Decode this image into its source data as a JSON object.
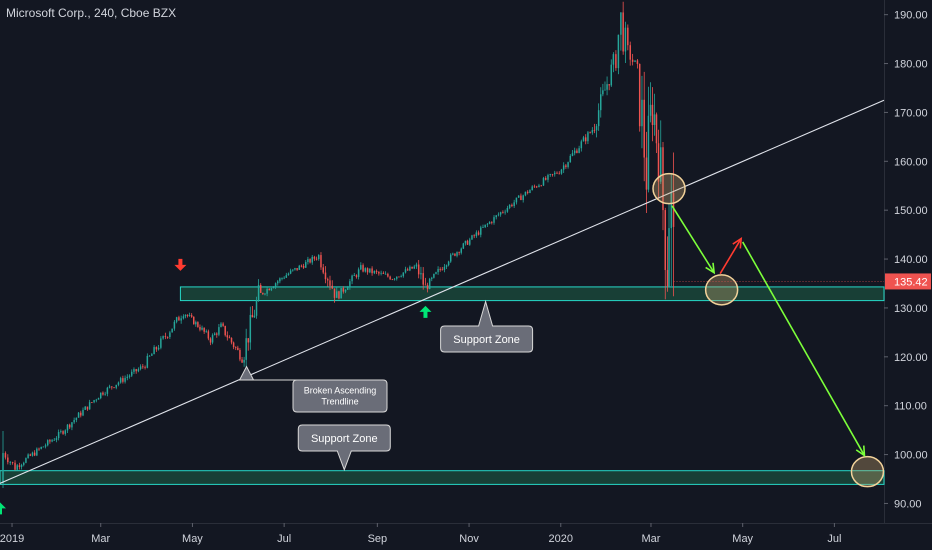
{
  "chart_data": {
    "type": "candlestick",
    "title": "Microsoft Corp., 240, Cboe BZX",
    "ylim": [
      86,
      193
    ],
    "y_ticks": [
      90,
      100,
      110,
      120,
      130,
      140,
      150,
      160,
      170,
      180,
      190
    ],
    "y_tick_labels": [
      "90.00",
      "100.00",
      "110.00",
      "120.00",
      "130.00",
      "140.00",
      "150.00",
      "160.00",
      "170.00",
      "180.00",
      "190.00"
    ],
    "x_range": [
      "2018-12-24",
      "2020-08-03"
    ],
    "x_ticks": [
      "2019-01-01",
      "2019-03-01",
      "2019-05-01",
      "2019-07-01",
      "2019-09-01",
      "2019-11-01",
      "2020-01-01",
      "2020-03-01",
      "2020-05-01",
      "2020-07-01"
    ],
    "x_tick_labels": [
      "2019",
      "Mar",
      "May",
      "Jul",
      "Sep",
      "Nov",
      "2020",
      "Mar",
      "May",
      "Jul"
    ],
    "price_path": [
      {
        "date": "2018-12-24",
        "price": 94.1
      },
      {
        "date": "2018-12-26",
        "price": 100.5
      },
      {
        "date": "2019-01-03",
        "price": 97.4
      },
      {
        "date": "2019-02-01",
        "price": 104.0
      },
      {
        "date": "2019-03-01",
        "price": 112.5
      },
      {
        "date": "2019-03-29",
        "price": 118.0
      },
      {
        "date": "2019-04-25",
        "price": 129.2
      },
      {
        "date": "2019-05-06",
        "price": 126.0
      },
      {
        "date": "2019-05-13",
        "price": 123.5
      },
      {
        "date": "2019-05-20",
        "price": 126.2
      },
      {
        "date": "2019-06-03",
        "price": 119.8
      },
      {
        "date": "2019-06-14",
        "price": 132.5
      },
      {
        "date": "2019-07-01",
        "price": 136.5
      },
      {
        "date": "2019-07-24",
        "price": 140.7
      },
      {
        "date": "2019-08-05",
        "price": 132.2
      },
      {
        "date": "2019-08-21",
        "price": 138.0
      },
      {
        "date": "2019-09-11",
        "price": 136.2
      },
      {
        "date": "2019-09-27",
        "price": 138.5
      },
      {
        "date": "2019-10-03",
        "price": 134.0
      },
      {
        "date": "2019-10-17",
        "price": 139.6
      },
      {
        "date": "2019-10-31",
        "price": 143.5
      },
      {
        "date": "2019-11-22",
        "price": 149.5
      },
      {
        "date": "2019-12-13",
        "price": 154.5
      },
      {
        "date": "2019-12-31",
        "price": 158.0
      },
      {
        "date": "2020-01-22",
        "price": 166.5
      },
      {
        "date": "2020-02-05",
        "price": 180.0
      },
      {
        "date": "2020-02-10",
        "price": 188.7
      },
      {
        "date": "2020-02-13",
        "price": 183.5
      },
      {
        "date": "2020-02-21",
        "price": 178.6
      },
      {
        "date": "2020-02-27",
        "price": 158.0
      },
      {
        "date": "2020-03-02",
        "price": 172.8
      },
      {
        "date": "2020-03-06",
        "price": 161.5
      },
      {
        "date": "2020-03-09",
        "price": 150.6
      },
      {
        "date": "2020-03-12",
        "price": 139.0
      },
      {
        "date": "2020-03-13",
        "price": 158.8
      },
      {
        "date": "2020-03-16",
        "price": 135.42
      }
    ],
    "last_price": 135.42,
    "last_price_label": "135.42",
    "support_zones": [
      {
        "from": 131.5,
        "to": 134.3,
        "start": "2019-04-23",
        "end": "2020-08-03",
        "label": "Support Zone",
        "callout_anchor": "2019-11-12"
      },
      {
        "from": 93.9,
        "to": 96.7,
        "start": "2018-12-24",
        "end": "2020-08-03",
        "label": "Support Zone",
        "callout_anchor": "2019-08-10"
      }
    ],
    "trendline": {
      "start": {
        "date": "2018-12-24",
        "price": 94.1
      },
      "end": {
        "date": "2020-08-03",
        "price": 172.5
      },
      "label": "Broken Ascending Trendline",
      "label_lines": [
        "Broken Ascending",
        "Trendline"
      ],
      "anchor": {
        "date": "2019-06-06",
        "price": 118.0
      }
    },
    "markers": [
      {
        "type": "arrow-down",
        "color": "#ff3b30",
        "date": "2019-04-23",
        "price": 138.8
      },
      {
        "type": "arrow-up",
        "color": "#00e676",
        "date": "2019-10-03",
        "price": 129.2
      },
      {
        "type": "arrow-up",
        "color": "#00e676",
        "date": "2018-12-24",
        "price": 89.0
      }
    ],
    "circles": [
      {
        "date": "2020-03-13",
        "price": 154.4
      },
      {
        "date": "2020-04-17",
        "price": 133.7
      },
      {
        "date": "2020-07-23",
        "price": 96.5
      }
    ],
    "projection_arrows": [
      {
        "color": "#7cff3a",
        "from": {
          "date": "2020-03-15",
          "price": 150.9
        },
        "to": {
          "date": "2020-04-12",
          "price": 137.2
        }
      },
      {
        "color": "#ff3b30",
        "from": {
          "date": "2020-04-16",
          "price": 137.0
        },
        "to": {
          "date": "2020-04-30",
          "price": 144.2
        }
      },
      {
        "color": "#7cff3a",
        "from": {
          "date": "2020-05-01",
          "price": 143.5
        },
        "to": {
          "date": "2020-07-21",
          "price": 99.8
        }
      }
    ],
    "colors": {
      "background": "#131722",
      "up": "#26a69a",
      "down": "#ef5350",
      "zone_fill": "#1b4d3e",
      "zone_border": "#26d9c8",
      "trendline": "#e0e3eb",
      "callout_fill": "#6a6d78",
      "text": "#d1d4dc",
      "price_tag": "#ef5350"
    }
  }
}
